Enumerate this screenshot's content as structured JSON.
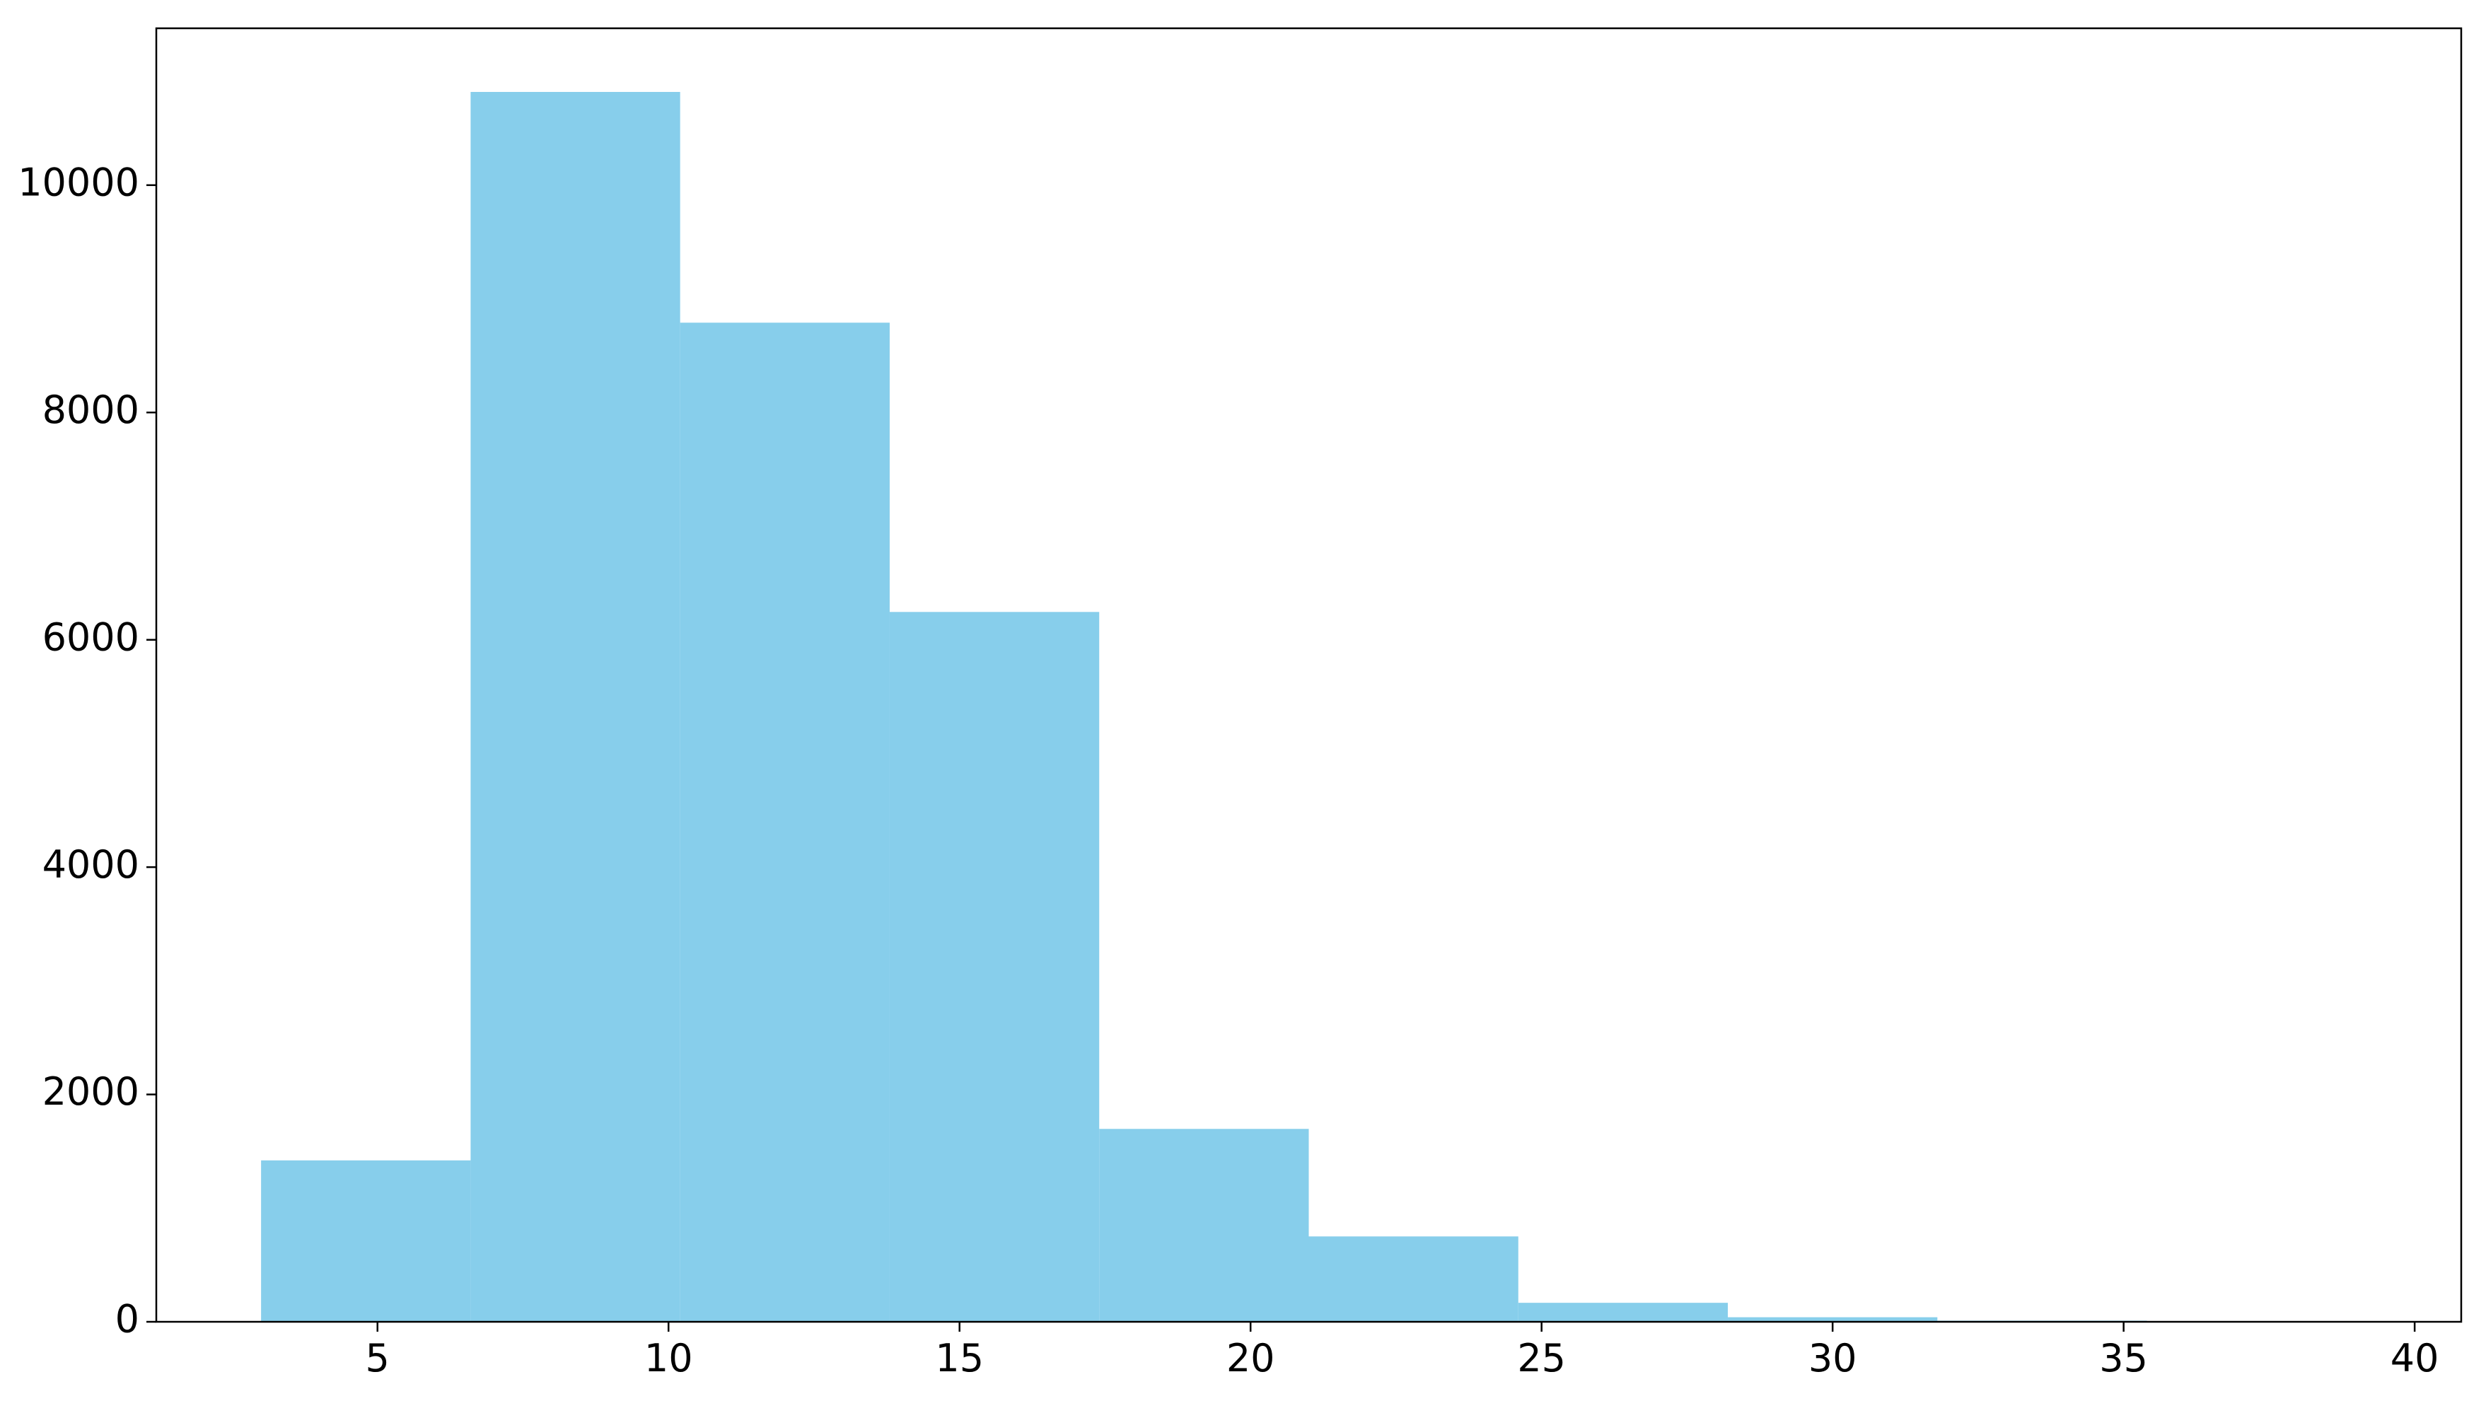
{
  "chart_data": {
    "type": "histogram",
    "bins": [
      3.0,
      6.6,
      10.2,
      13.8,
      17.4,
      21.0,
      24.6,
      28.2,
      31.8,
      35.4,
      39.0
    ],
    "counts": [
      1420,
      10820,
      8790,
      6245,
      1697,
      751,
      167,
      40,
      10,
      2
    ],
    "color": "#87ceeb",
    "xlim": [
      1.2,
      40.8
    ],
    "xticks": [
      5,
      10,
      15,
      20,
      25,
      30,
      35,
      40
    ],
    "ylim": [
      0,
      11380
    ],
    "yticks": [
      0,
      2000,
      4000,
      6000,
      8000,
      10000
    ],
    "grid": false
  }
}
